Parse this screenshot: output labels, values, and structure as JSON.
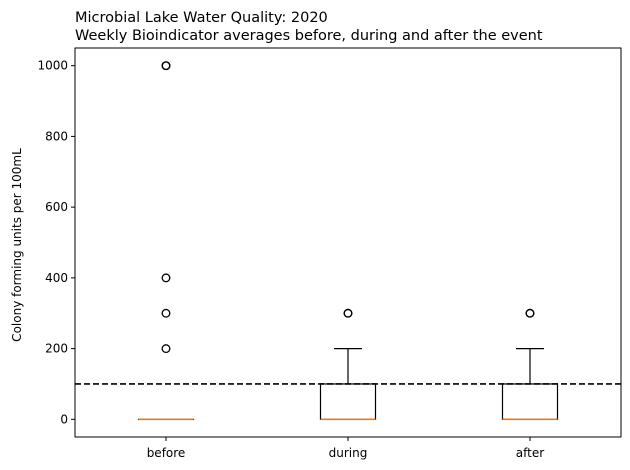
{
  "chart_data": {
    "type": "box",
    "title": "Microbial Lake Water Quality: 2020",
    "subtitle": "Weekly Bioindicator averages before, during and after the event",
    "xlabel": "",
    "ylabel": "Colony forming units per 100mL",
    "ylim": [
      -50,
      1050
    ],
    "yticks": [
      0,
      200,
      400,
      600,
      800,
      1000
    ],
    "grid": false,
    "categories": [
      "before",
      "during",
      "after"
    ],
    "boxes": [
      {
        "category": "before",
        "whisker_low": 0,
        "q1": 0,
        "median": 0,
        "q3": 0,
        "whisker_high": 0,
        "outliers": [
          200,
          300,
          400,
          1000,
          1000
        ]
      },
      {
        "category": "during",
        "whisker_low": 0,
        "q1": 0,
        "median": 0,
        "q3": 100,
        "whisker_high": 200,
        "outliers": [
          300,
          300
        ]
      },
      {
        "category": "after",
        "whisker_low": 0,
        "q1": 0,
        "median": 0,
        "q3": 100,
        "whisker_high": 200,
        "outliers": [
          300,
          300
        ]
      }
    ],
    "reference_line": {
      "y": 100,
      "style": "dashed",
      "color": "#000000"
    },
    "colors": {
      "box": "#000000",
      "median": "#e07b2a",
      "outlier": "#000000"
    }
  }
}
